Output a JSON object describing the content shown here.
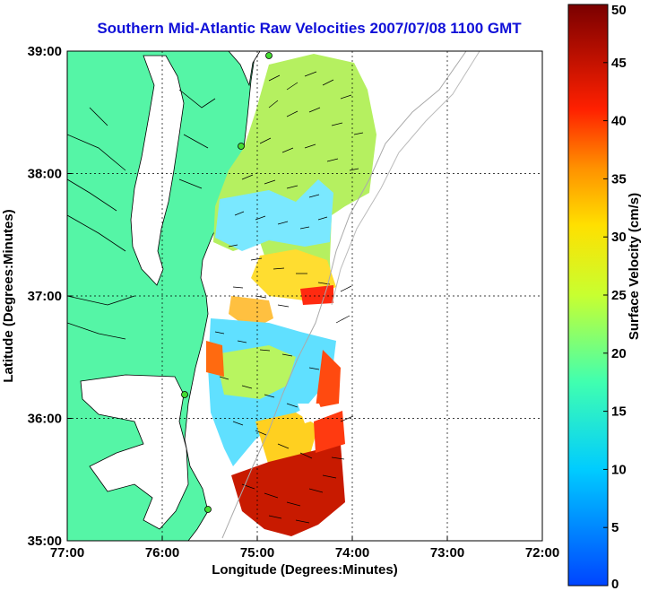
{
  "title": "Southern Mid-Atlantic Raw Velocities 2007/07/08 1100 GMT",
  "axes": {
    "xlabel": "Longitude (Degrees:Minutes)",
    "ylabel": "Latitude (Degrees:Minutes)",
    "xticks": [
      "77:00",
      "76:00",
      "75:00",
      "74:00",
      "73:00",
      "72:00"
    ],
    "yticks": [
      "39:00",
      "38:00",
      "37:00",
      "36:00",
      "35:00"
    ],
    "xlim": [
      -77,
      -72
    ],
    "ylim": [
      35,
      39
    ]
  },
  "colorbar": {
    "label": "Surface Velocity (cm/s)",
    "ticks": [
      "50",
      "45",
      "40",
      "35",
      "30",
      "25",
      "20",
      "15",
      "10",
      "5",
      "0"
    ],
    "range": [
      0,
      50
    ]
  },
  "colors": {
    "land": "#55f5a6",
    "title": "#1010d8",
    "station": "#44dd33"
  }
}
